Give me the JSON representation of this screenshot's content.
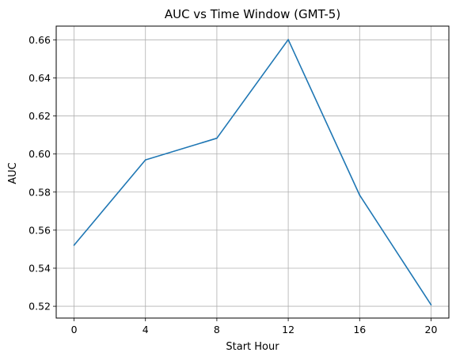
{
  "chart_data": {
    "type": "line",
    "title": "AUC vs Time Window (GMT-5)",
    "xlabel": "Start Hour",
    "ylabel": "AUC",
    "x": [
      0,
      4,
      8,
      12,
      16,
      20
    ],
    "series": [
      {
        "values": [
          0.5521,
          0.5969,
          0.6083,
          0.6601,
          0.5784,
          0.5208
        ]
      }
    ],
    "xticks": [
      0,
      4,
      8,
      12,
      16,
      20
    ],
    "xtick_labels": [
      "0",
      "4",
      "8",
      "12",
      "16",
      "20"
    ],
    "yticks": [
      0.52,
      0.54,
      0.56,
      0.58,
      0.6,
      0.62,
      0.64,
      0.66
    ],
    "ytick_labels": [
      "0.52",
      "0.54",
      "0.56",
      "0.58",
      "0.60",
      "0.62",
      "0.64",
      "0.66"
    ],
    "xlim": [
      -1,
      21
    ],
    "ylim": [
      0.5138,
      0.6672
    ],
    "grid": true,
    "line_color": "#1f77b4",
    "grid_color": "#b0b0b0"
  }
}
